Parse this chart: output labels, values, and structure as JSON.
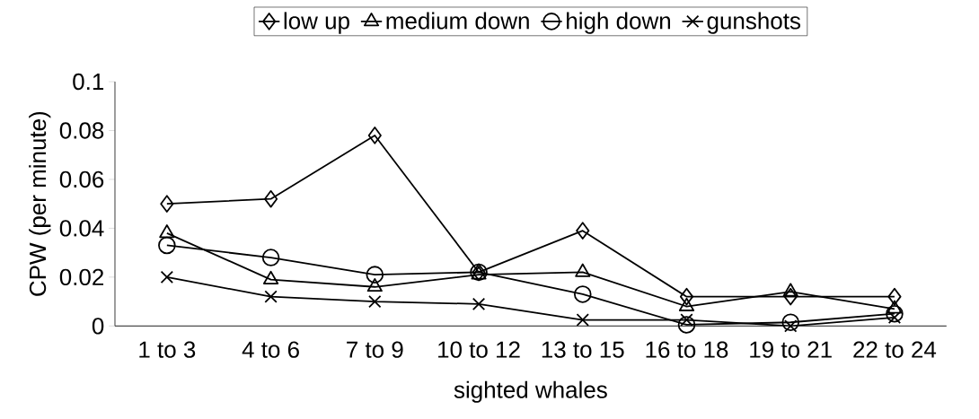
{
  "chart_data": {
    "type": "line",
    "xlabel": "sighted whales",
    "ylabel": "CPW (per minute)",
    "categories": [
      "1 to 3",
      "4 to 6",
      "7 to 9",
      "10 to 12",
      "13 to 15",
      "16 to 18",
      "19 to 21",
      "22 to 24"
    ],
    "series": [
      {
        "name": "low up",
        "color": "#000000",
        "marker": "diamond",
        "values": [
          0.05,
          0.052,
          0.078,
          0.022,
          0.039,
          0.012,
          0.012,
          0.012
        ]
      },
      {
        "name": "medium down",
        "color": "#000000",
        "marker": "triangle",
        "values": [
          0.038,
          0.019,
          0.016,
          0.021,
          0.022,
          0.008,
          0.014,
          0.007
        ]
      },
      {
        "name": "high down",
        "color": "#000000",
        "marker": "circle",
        "values": [
          0.033,
          0.028,
          0.021,
          0.022,
          0.013,
          0.0005,
          0.0015,
          0.005
        ]
      },
      {
        "name": "gunshots",
        "color": "#000000",
        "marker": "cross",
        "values": [
          0.02,
          0.012,
          0.01,
          0.009,
          0.0025,
          0.0025,
          0.0,
          0.0035
        ]
      }
    ],
    "ylim": [
      0,
      0.1
    ],
    "yticks": [
      0,
      0.02,
      0.04,
      0.06,
      0.08,
      0.1
    ],
    "grid": false,
    "legend": "top"
  }
}
